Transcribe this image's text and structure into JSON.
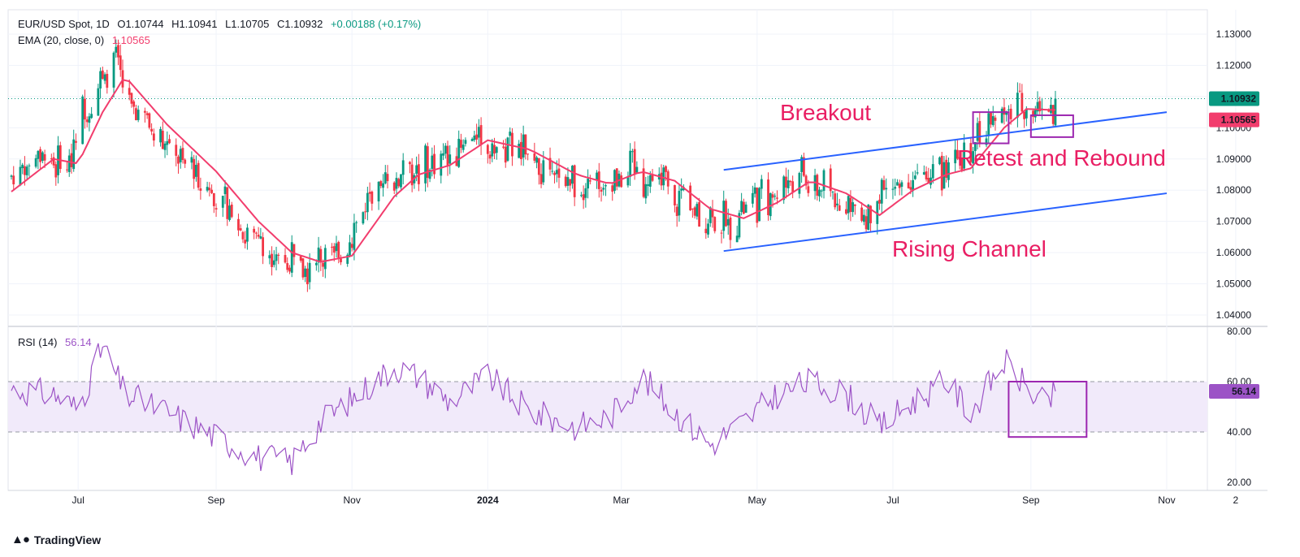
{
  "header": {
    "symbol": "EUR/USD Spot, 1D",
    "open": "O1.10744",
    "high": "H1.10941",
    "low": "L1.10705",
    "close": "C1.10932",
    "change": "+0.00188 (+0.17%)",
    "ema_label": "EMA (20, close, 0)",
    "ema_value": "1.10565",
    "rsi_label": "RSI (14)",
    "rsi_value": "56.14"
  },
  "brand": {
    "name": "TradingView"
  },
  "colors": {
    "up": "#089981",
    "down": "#f23645",
    "ema": "#f23d6d",
    "rsi": "#9c53c6",
    "channel": "#2962ff",
    "annotation": "#e91e63",
    "box": "#9c27b0"
  },
  "chart_data": [
    {
      "type": "candlestick",
      "title": "EUR/USD Spot, 1D",
      "price_ticks": [
        "1.13000",
        "1.12000",
        "1.11000",
        "1.10000",
        "1.09000",
        "1.08000",
        "1.07000",
        "1.06000",
        "1.05000",
        "1.04000"
      ],
      "ylim": [
        1.035,
        1.133
      ],
      "x_ticks": [
        "Jul",
        "Sep",
        "Nov",
        "2024",
        "Mar",
        "May",
        "Jul",
        "Sep",
        "Nov",
        "2"
      ],
      "last_price_label": "1.10932",
      "ema_label": "1.10565",
      "ema_anchors": [
        [
          "2023-06-01",
          1.0795
        ],
        [
          "2023-06-20",
          1.09
        ],
        [
          "2023-07-01",
          1.0885
        ],
        [
          "2023-07-12",
          1.105
        ],
        [
          "2023-07-22",
          1.1165
        ],
        [
          "2023-08-10",
          1.101
        ],
        [
          "2023-09-01",
          1.086
        ],
        [
          "2023-09-20",
          1.07
        ],
        [
          "2023-10-05",
          1.06
        ],
        [
          "2023-10-18",
          1.057
        ],
        [
          "2023-11-01",
          1.059
        ],
        [
          "2023-11-20",
          1.078
        ],
        [
          "2023-12-01",
          1.085
        ],
        [
          "2023-12-15",
          1.088
        ],
        [
          "2024-01-01",
          1.096
        ],
        [
          "2024-01-20",
          1.093
        ],
        [
          "2024-02-10",
          1.085
        ],
        [
          "2024-02-25",
          1.082
        ],
        [
          "2024-03-10",
          1.086
        ],
        [
          "2024-03-25",
          1.083
        ],
        [
          "2024-04-10",
          1.074
        ],
        [
          "2024-04-25",
          1.071
        ],
        [
          "2024-05-10",
          1.076
        ],
        [
          "2024-05-25",
          1.083
        ],
        [
          "2024-06-10",
          1.079
        ],
        [
          "2024-06-25",
          1.072
        ],
        [
          "2024-07-10",
          1.08
        ],
        [
          "2024-07-25",
          1.085
        ],
        [
          "2024-08-05",
          1.087
        ],
        [
          "2024-08-20",
          1.1
        ],
        [
          "2024-08-30",
          1.106
        ],
        [
          "2024-09-12",
          1.1057
        ]
      ],
      "channel_upper": [
        [
          "2024-04-16",
          1.0865
        ],
        [
          "2024-11-01",
          1.105
        ]
      ],
      "channel_lower": [
        [
          "2024-04-16",
          1.0605
        ],
        [
          "2024-11-01",
          1.079
        ]
      ],
      "annotations": [
        "Breakout",
        "Retest and Rebound",
        "Rising Channel"
      ],
      "breakout_box": {
        "x": [
          "2024-08-06",
          "2024-08-22"
        ],
        "y": [
          1.095,
          1.105
        ]
      },
      "retest_box": {
        "x": [
          "2024-09-01",
          "2024-09-20"
        ],
        "y": [
          1.097,
          1.104
        ]
      }
    },
    {
      "type": "line",
      "title": "RSI (14)",
      "ylim": [
        20,
        80
      ],
      "y_ticks": [
        "80.00",
        "60.00",
        "40.00",
        "20.00"
      ],
      "band": [
        40,
        60
      ],
      "last_value_label": "56.14",
      "anchors": [
        [
          "2023-06-01",
          57
        ],
        [
          "2023-06-20",
          55
        ],
        [
          "2023-07-01",
          49
        ],
        [
          "2023-07-12",
          74
        ],
        [
          "2023-07-22",
          55
        ],
        [
          "2023-08-10",
          48
        ],
        [
          "2023-09-01",
          38
        ],
        [
          "2023-09-20",
          30
        ],
        [
          "2023-10-05",
          28
        ],
        [
          "2023-10-18",
          44
        ],
        [
          "2023-11-01",
          53
        ],
        [
          "2023-11-20",
          66
        ],
        [
          "2023-12-01",
          62
        ],
        [
          "2023-12-15",
          52
        ],
        [
          "2024-01-01",
          62
        ],
        [
          "2024-01-20",
          48
        ],
        [
          "2024-02-10",
          42
        ],
        [
          "2024-02-25",
          46
        ],
        [
          "2024-03-10",
          62
        ],
        [
          "2024-03-25",
          48
        ],
        [
          "2024-04-10",
          35
        ],
        [
          "2024-04-25",
          44
        ],
        [
          "2024-05-10",
          55
        ],
        [
          "2024-05-25",
          60
        ],
        [
          "2024-06-10",
          55
        ],
        [
          "2024-06-25",
          42
        ],
        [
          "2024-07-10",
          52
        ],
        [
          "2024-07-25",
          60
        ],
        [
          "2024-08-05",
          48
        ],
        [
          "2024-08-20",
          68
        ],
        [
          "2024-08-30",
          58
        ],
        [
          "2024-09-08",
          50
        ],
        [
          "2024-09-12",
          56
        ]
      ],
      "box": {
        "x": [
          "2024-08-22",
          "2024-09-26"
        ],
        "y": [
          38,
          60
        ]
      }
    }
  ]
}
